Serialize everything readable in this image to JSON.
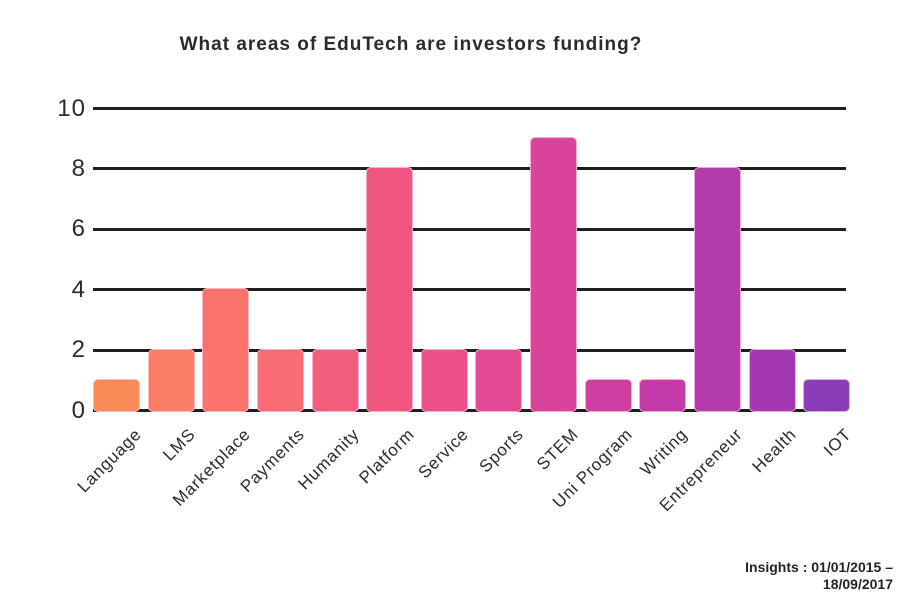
{
  "title": "What areas of EduTech are investors funding?",
  "footer": {
    "line1": "Insights : 01/01/2015 –",
    "line2": "18/09/2017"
  },
  "chart_data": {
    "type": "bar",
    "title": "What areas of EduTech are investors funding?",
    "categories": [
      "Language",
      "LMS",
      "Marketplace",
      "Payments",
      "Humanity",
      "Platform",
      "Service",
      "Sports",
      "STEM",
      "Uni Program",
      "Writing",
      "Entrepreneur",
      "Health",
      "IOT"
    ],
    "values": [
      1,
      2,
      4,
      2,
      2,
      8,
      2,
      2,
      9,
      1,
      1,
      8,
      2,
      1
    ],
    "bar_colors": [
      "#FA8A58",
      "#FA7E63",
      "#F87369",
      "#F66C72",
      "#F25F7D",
      "#EF5781",
      "#EA4F8A",
      "#E34893",
      "#D8449A",
      "#CE3FA1",
      "#C43BA8",
      "#B23CAB",
      "#A438B1",
      "#8A3CB6"
    ],
    "xlabel": "",
    "ylabel": "",
    "ylim": [
      0,
      10
    ],
    "yticks": [
      0,
      2,
      4,
      6,
      8,
      10
    ],
    "grid": "horizontal",
    "gridline_color": "#1f1f1f",
    "text_color": "#2b2b2b",
    "background": "#ffffff",
    "legend": "none"
  }
}
